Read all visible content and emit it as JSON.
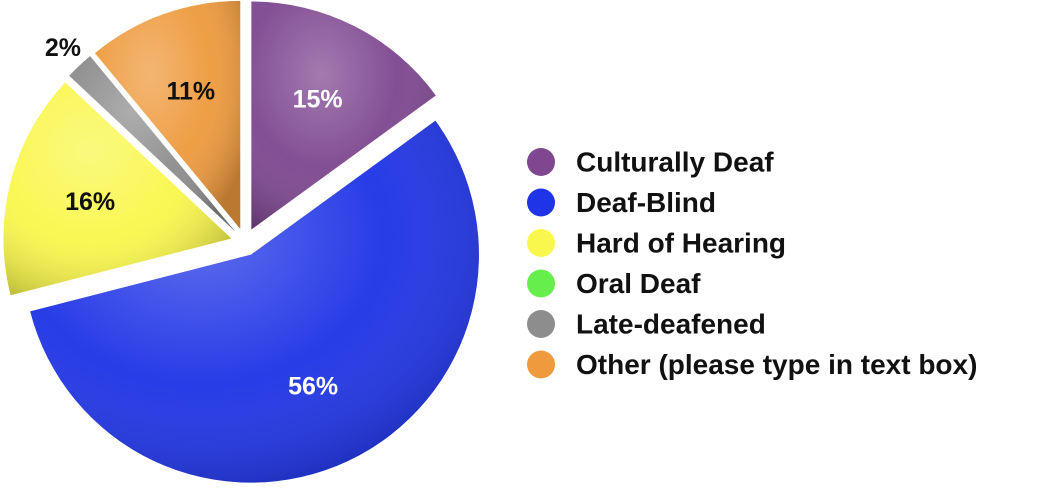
{
  "chart_data": {
    "type": "pie",
    "title": "",
    "legend_position": "right",
    "slices": [
      {
        "label": "Culturally Deaf",
        "value": 15,
        "display": "15%",
        "color": "#7E4790",
        "text_color": "#ffffff"
      },
      {
        "label": "Deaf-Blind",
        "value": 56,
        "display": "56%",
        "color": "#1F34E6",
        "text_color": "#ffffff"
      },
      {
        "label": "Hard of Hearing",
        "value": 16,
        "display": "16%",
        "color": "#F9F74C",
        "text_color": "#111111"
      },
      {
        "label": "Oral Deaf",
        "value": 0,
        "display": "",
        "color": "#66EE4C",
        "text_color": "#111111"
      },
      {
        "label": "Late-deafened",
        "value": 2,
        "display": "2%",
        "color": "#8D8D8D",
        "text_color": "#111111"
      },
      {
        "label": "Other (please type in text box)",
        "value": 11,
        "display": "11%",
        "color": "#EE9A3D",
        "text_color": "#111111"
      }
    ]
  }
}
